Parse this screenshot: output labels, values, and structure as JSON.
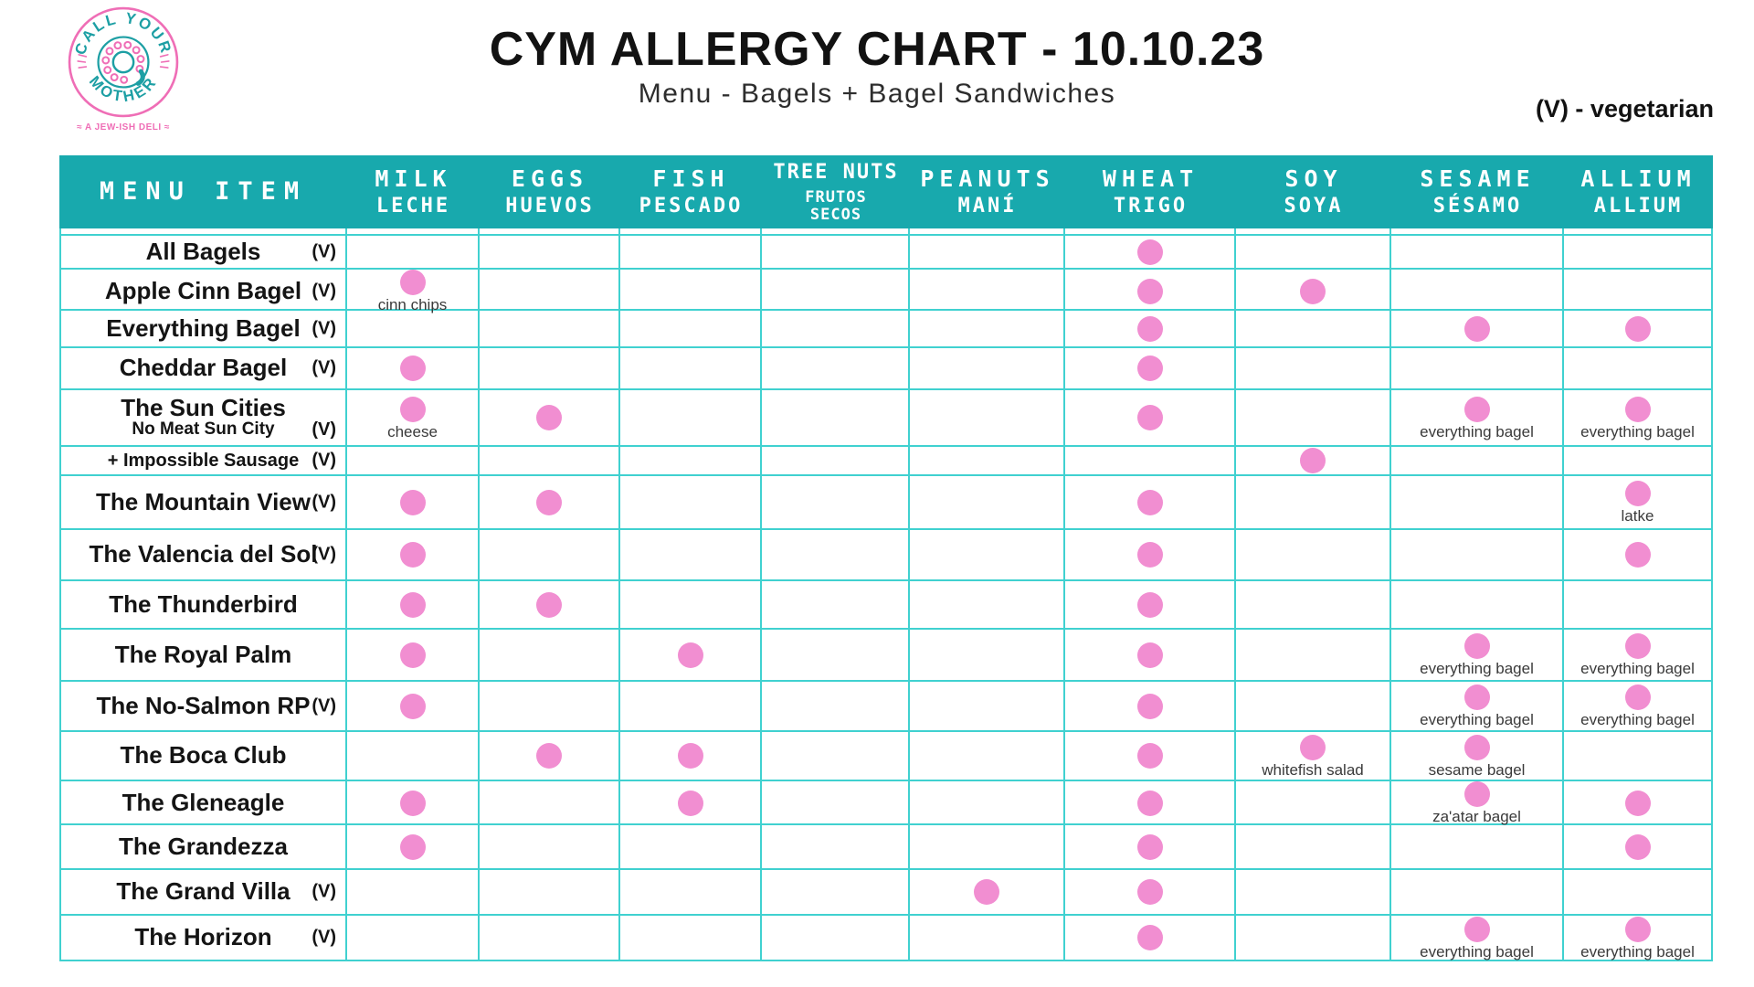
{
  "logo": {
    "top_text": "CALL YOUR",
    "bottom_text": "MOTHER",
    "tagline": "≈ A JEW-ISH DELI ≈"
  },
  "veg_symbol": "(V)",
  "colors": {
    "header_teal": "#18a9ad",
    "grid_teal": "#40d1d0",
    "dot_pink": "#f18ed1",
    "logo_pink": "#ef6eb6",
    "logo_teal": "#1d9fa4"
  },
  "chart_data": {
    "type": "table",
    "title": "CYM ALLERGY CHART - 10.10.23",
    "subtitle": "Menu - Bagels + Bagel Sandwiches",
    "legend": "(V) - vegetarian",
    "row_header": "MENU ITEM",
    "columns": [
      {
        "key": "milk",
        "en": "MILK",
        "es": "LECHE"
      },
      {
        "key": "eggs",
        "en": "EGGS",
        "es": "HUEVOS"
      },
      {
        "key": "fish",
        "en": "FISH",
        "es": "PESCADO"
      },
      {
        "key": "tree_nuts",
        "en": "TREE NUTS",
        "es": "FRUTOS SECOS",
        "small": true
      },
      {
        "key": "peanuts",
        "en": "PEANUTS",
        "es": "MANÍ"
      },
      {
        "key": "wheat",
        "en": "WHEAT",
        "es": "TRIGO"
      },
      {
        "key": "soy",
        "en": "SOY",
        "es": "SOYA"
      },
      {
        "key": "sesame",
        "en": "SESAME",
        "es": "SÉSAMO"
      },
      {
        "key": "allium",
        "en": "ALLIUM",
        "es": "ALLIUM"
      }
    ],
    "rows": [
      {
        "name": "All Bagels",
        "veg": true,
        "marks": {
          "wheat": ""
        }
      },
      {
        "name": "Apple Cinn Bagel",
        "veg": true,
        "marks": {
          "milk": "cinn chips",
          "wheat": "",
          "soy": ""
        }
      },
      {
        "name": "Everything Bagel",
        "veg": true,
        "marks": {
          "wheat": "",
          "sesame": "",
          "allium": ""
        }
      },
      {
        "name": "Cheddar Bagel",
        "veg": true,
        "marks": {
          "milk": "",
          "wheat": ""
        }
      },
      {
        "name": "The Sun Cities",
        "subname": "No Meat Sun City",
        "veg": true,
        "marks": {
          "milk": "cheese",
          "eggs": "",
          "wheat": "",
          "sesame": "everything bagel",
          "allium": "everything bagel"
        }
      },
      {
        "name": "+ Impossible Sausage",
        "veg": true,
        "small": true,
        "marks": {
          "soy": ""
        }
      },
      {
        "name": "The Mountain View",
        "veg": true,
        "marks": {
          "milk": "",
          "eggs": "",
          "wheat": "",
          "allium": "latke"
        }
      },
      {
        "name": "The Valencia del Sol",
        "veg": true,
        "marks": {
          "milk": "",
          "wheat": "",
          "allium": ""
        }
      },
      {
        "name": "The Thunderbird",
        "veg": false,
        "marks": {
          "milk": "",
          "eggs": "",
          "wheat": ""
        }
      },
      {
        "name": "The Royal Palm",
        "veg": false,
        "marks": {
          "milk": "",
          "fish": "",
          "wheat": "",
          "sesame": "everything bagel",
          "allium": "everything bagel"
        }
      },
      {
        "name": "The No-Salmon RP",
        "veg": true,
        "marks": {
          "milk": "",
          "wheat": "",
          "sesame": "everything bagel",
          "allium": "everything bagel"
        }
      },
      {
        "name": "The Boca Club",
        "veg": false,
        "marks": {
          "eggs": "",
          "fish": "",
          "wheat": "",
          "soy": "whitefish salad",
          "sesame": "sesame bagel"
        }
      },
      {
        "name": "The Gleneagle",
        "veg": false,
        "marks": {
          "milk": "",
          "fish": "",
          "wheat": "",
          "sesame": "za'atar bagel",
          "allium": ""
        }
      },
      {
        "name": "The Grandezza",
        "veg": false,
        "marks": {
          "milk": "",
          "wheat": "",
          "allium": ""
        }
      },
      {
        "name": "The Grand Villa",
        "veg": true,
        "marks": {
          "peanuts": "",
          "wheat": ""
        }
      },
      {
        "name": "The Horizon",
        "veg": true,
        "marks": {
          "wheat": "",
          "sesame": "everything bagel",
          "allium": "everything bagel"
        }
      }
    ]
  }
}
